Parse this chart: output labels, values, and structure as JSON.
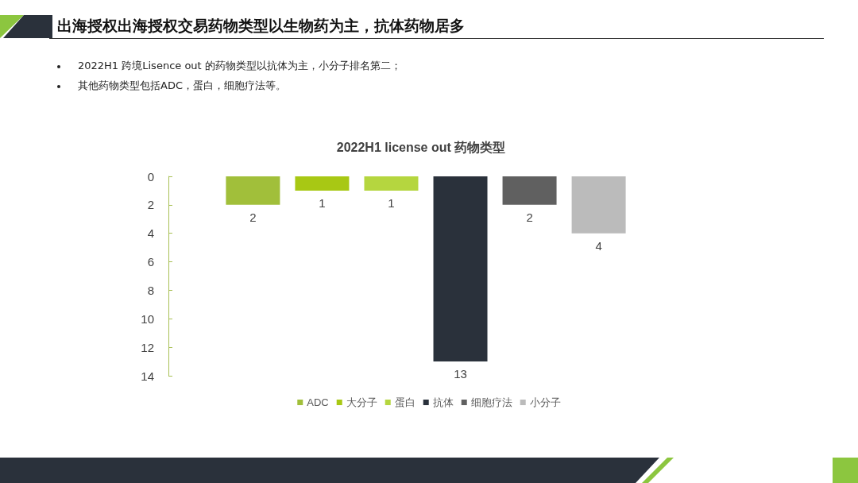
{
  "chart_data": {
    "type": "bar",
    "title": "2022H1 license out 药物类型",
    "annotations": [
      "出海授权出海授权交易药物类型以生物药为主，抗体药物居多",
      "2022H1 跨境Lisence out 的药物类型以抗体为主，小分子排名第二；",
      "其他药物类型包括ADC，蛋白，细胞疗法等。"
    ],
    "categories": [
      null
    ],
    "series": [
      {
        "name": "ADC",
        "color": "#a1bf3a",
        "values": [
          2
        ]
      },
      {
        "name": "大分子",
        "color": "#a8c814",
        "values": [
          1
        ]
      },
      {
        "name": "蛋白",
        "color": "#b5d63f",
        "values": [
          1
        ]
      },
      {
        "name": "抗体",
        "color": "#2a313b",
        "values": [
          13
        ]
      },
      {
        "name": "细胞疗法",
        "color": "#606060",
        "values": [
          2
        ]
      },
      {
        "name": "小分子",
        "color": "#bbbbbb",
        "values": [
          4
        ]
      }
    ],
    "ylim": [
      14,
      0
    ],
    "yticks": [
      0,
      2,
      4,
      6,
      8,
      10,
      12,
      14
    ],
    "data_labels": true,
    "legend": "bottom",
    "grid": false
  }
}
